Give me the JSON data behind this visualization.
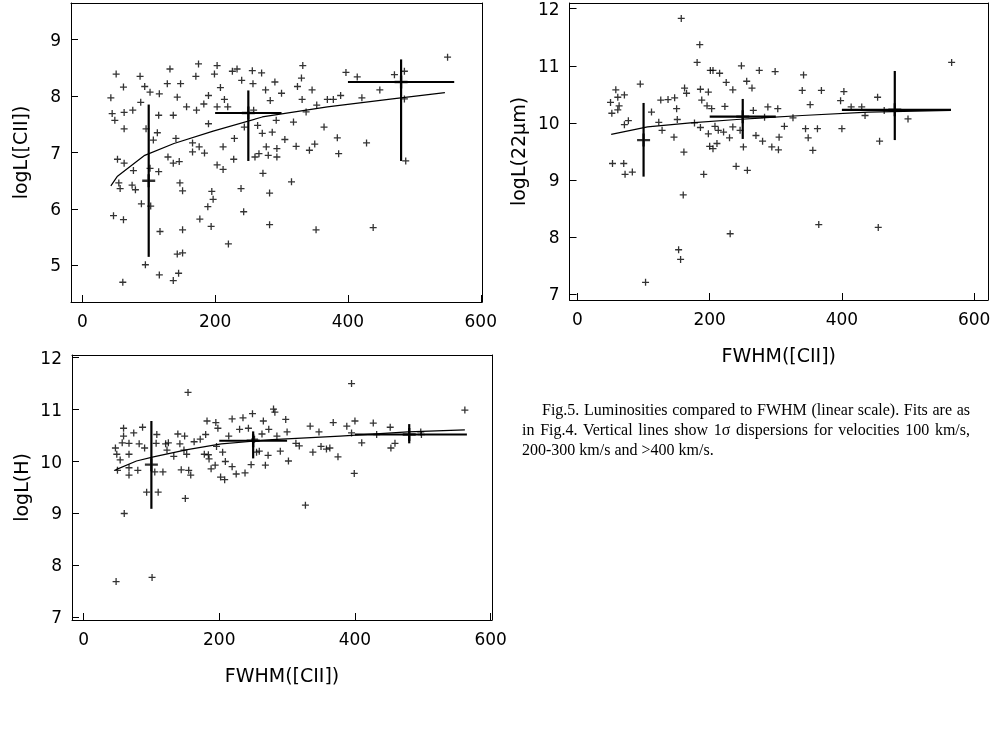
{
  "chart_data": [
    {
      "type": "scatter",
      "ylabel": "logL([CII])",
      "xlim": [
        -17,
        602
      ],
      "xticks": [
        0,
        200,
        400,
        600
      ],
      "ylim": [
        4.35,
        9.65
      ],
      "yticks": [
        5,
        6,
        7,
        8,
        9
      ],
      "series": [
        {
          "marker": "cross",
          "color": "#000000",
          "x": [
            43,
            45,
            51,
            49,
            53,
            47,
            55,
            57,
            62,
            63,
            63,
            62,
            61,
            63,
            76,
            77,
            75,
            80,
            87,
            88,
            89,
            94,
            95,
            103,
            102,
            102,
            107,
            113,
            115,
            116,
            115,
            117,
            116,
            128,
            129,
            132,
            137,
            137,
            141,
            143,
            146,
            147,
            143,
            137,
            145,
            148,
            151,
            151,
            151,
            157,
            166,
            166,
            171,
            175,
            176,
            177,
            172,
            183,
            184,
            189,
            190,
            190,
            194,
            195,
            197,
            199,
            203,
            203,
            203,
            208,
            212,
            212,
            214,
            219,
            220,
            226,
            228,
            229,
            233,
            240,
            239,
            243,
            244,
            256,
            257,
            258,
            260,
            264,
            266,
            270,
            271,
            272,
            276,
            277,
            280,
            282,
            282,
            283,
            286,
            290,
            292,
            293,
            293,
            300,
            305,
            315,
            318,
            322,
            324,
            330,
            332,
            331,
            337,
            342,
            346,
            350,
            352,
            353,
            364,
            369,
            378,
            384,
            386,
            389,
            397,
            414,
            421,
            428,
            438,
            448,
            470,
            485,
            487,
            485,
            550,
            96
          ],
          "values": [
            7.97,
            7.69,
            8.39,
            7.57,
            6.88,
            5.88,
            6.46,
            6.36,
            8.16,
            7.42,
            6.81,
            5.81,
            4.7,
            7.71,
            7.75,
            6.68,
            6.42,
            6.34,
            8.35,
            7.89,
            6.09,
            8.17,
            5.01,
            6.05,
            8.07,
            6.72,
            7.22,
            7.35,
            6.66,
            8.04,
            7.66,
            5.6,
            4.83,
            8.22,
            6.92,
            8.48,
            7.66,
            6.81,
            7.25,
            7.98,
            6.84,
            6.46,
            5.2,
            4.73,
            4.86,
            8.22,
            5.63,
            6.32,
            5.22,
            7.81,
            7.01,
            7.17,
            8.35,
            8.57,
            7.1,
            5.82,
            7.75,
            7.86,
            6.99,
            6.04,
            7.51,
            8.01,
            5.69,
            6.31,
            6.17,
            8.39,
            8.54,
            6.78,
            7.81,
            8.15,
            7.1,
            6.7,
            7.94,
            7.81,
            5.38,
            8.44,
            6.88,
            7.25,
            8.48,
            8.28,
            6.36,
            5.95,
            7.45,
            8.45,
            8.22,
            7.75,
            6.92,
            7.48,
            6.98,
            8.41,
            7.34,
            6.63,
            8.11,
            7.1,
            6.95,
            6.28,
            5.72,
            7.92,
            7.36,
            8.25,
            7.57,
            7.07,
            6.92,
            8.05,
            7.23,
            6.48,
            7.54,
            7.11,
            8.17,
            8.32,
            8.54,
            7.94,
            7.72,
            7.04,
            8.11,
            7.15,
            5.63,
            7.84,
            7.45,
            7.94,
            7.94,
            7.26,
            6.98,
            8.01,
            8.42,
            8.34,
            7.97,
            7.17,
            5.67,
            8.11,
            8.38,
            8.44,
            6.85,
            7.95,
            8.69,
            7.42
          ]
        },
        {
          "type": "line",
          "marker": "none",
          "color": "#000000",
          "x": [
            43,
            53,
            94,
            138,
            197,
            271,
            369,
            467,
            546
          ],
          "values": [
            6.41,
            6.58,
            6.95,
            7.16,
            7.38,
            7.63,
            7.81,
            7.95,
            8.06
          ]
        },
        {
          "marker": "cross",
          "color": "#000000",
          "x": [
            100,
            250,
            480
          ],
          "values": [
            6.5,
            7.7,
            8.25
          ],
          "errors": [
            [
              5.15,
              7.85
            ],
            [
              6.85,
              8.1
            ],
            [
              6.85,
              8.65
            ]
          ],
          "xerrors": [
            null,
            [
              200,
              300
            ],
            [
              400,
              560
            ]
          ]
        }
      ]
    },
    {
      "type": "scatter",
      "ylabel": "logL(22μm)",
      "xlabel": "FWHM([CII])",
      "xlim": [
        -12,
        621
      ],
      "xticks": [
        0,
        200,
        400,
        600
      ],
      "ylim": [
        6.9,
        12.1
      ],
      "yticks": [
        7,
        8,
        9,
        10,
        11,
        12
      ],
      "series": [
        {
          "marker": "cross",
          "color": "#000000",
          "x": [
            50,
            52,
            53,
            58,
            61,
            63,
            61,
            70,
            71,
            72,
            71,
            77,
            83,
            95,
            103,
            112,
            123,
            126,
            128,
            137,
            146,
            147,
            150,
            151,
            153,
            156,
            157,
            160,
            161,
            162,
            165,
            177,
            181,
            185,
            186,
            186,
            188,
            191,
            196,
            198,
            198,
            200,
            201,
            205,
            203,
            205,
            208,
            211,
            213,
            215,
            221,
            223,
            225,
            230,
            231,
            235,
            235,
            240,
            246,
            248,
            251,
            256,
            257,
            264,
            266,
            270,
            275,
            280,
            283,
            288,
            294,
            299,
            303,
            305,
            304,
            313,
            326,
            340,
            342,
            345,
            349,
            352,
            356,
            363,
            365,
            369,
            398,
            400,
            403,
            414,
            430,
            435,
            454,
            457,
            455,
            464,
            500,
            566
          ],
          "values": [
            10.36,
            10.17,
            9.29,
            10.58,
            10.45,
            10.3,
            10.23,
            9.29,
            10.49,
            9.1,
            9.97,
            10.04,
            9.14,
            10.68,
            7.21,
            10.19,
            10.01,
            10.4,
            9.87,
            10.41,
            9.75,
            10.44,
            10.25,
            10.06,
            7.78,
            7.61,
            11.83,
            8.74,
            9.49,
            10.61,
            10.52,
            10.0,
            11.06,
            11.37,
            10.59,
            9.92,
            10.4,
            9.1,
            10.3,
            10.54,
            9.81,
            9.59,
            10.92,
            10.92,
            10.25,
            9.55,
            9.94,
            9.64,
            9.87,
            10.87,
            9.84,
            10.29,
            10.71,
            9.74,
            8.06,
            10.58,
            9.93,
            9.24,
            9.87,
            11.0,
            9.58,
            10.73,
            9.17,
            10.61,
            10.22,
            9.78,
            10.92,
            9.68,
            10.1,
            10.28,
            9.58,
            10.9,
            10.25,
            9.75,
            9.53,
            9.94,
            10.09,
            10.57,
            10.84,
            9.9,
            9.74,
            10.32,
            9.52,
            9.9,
            8.22,
            10.57,
            10.39,
            9.9,
            10.55,
            10.28,
            10.28,
            10.13,
            10.45,
            9.68,
            8.17,
            10.22,
            10.07,
            11.06
          ]
        },
        {
          "type": "line",
          "marker": "none",
          "color": "#000000",
          "x": [
            51,
            106,
            171,
            241,
            340,
            440,
            565
          ],
          "values": [
            9.8,
            9.93,
            10.0,
            10.06,
            10.13,
            10.19,
            10.22
          ]
        },
        {
          "marker": "cross",
          "color": "#000000",
          "x": [
            100,
            250,
            480
          ],
          "values": [
            9.7,
            10.11,
            10.23
          ],
          "errors": [
            [
              9.06,
              10.35
            ],
            [
              9.72,
              10.42
            ],
            [
              9.7,
              10.91
            ]
          ],
          "xerrors": [
            null,
            [
              200,
              300
            ],
            [
              400,
              565
            ]
          ]
        }
      ]
    },
    {
      "type": "scatter",
      "ylabel": "logL(H)",
      "xlabel": "FWHM([CII])",
      "xlim": [
        -17,
        602
      ],
      "xticks": [
        0,
        200,
        400,
        600
      ],
      "ylim": [
        6.95,
        12.05
      ],
      "yticks": [
        7,
        8,
        9,
        10,
        11,
        12
      ],
      "annotations": [
        "Fig.5. Luminosities compared to FWHM (linear scale). Fits are as in Fig.4. Vertical lines show 1σ dispersions for velocities 100 km/s, 200-300 km/s and >400 km/s."
      ],
      "series": [
        {
          "marker": "cross",
          "color": "#000000",
          "x": [
            47,
            50,
            49,
            54,
            57,
            59,
            59,
            60,
            48,
            67,
            67,
            67,
            67,
            74,
            80,
            82,
            87,
            90,
            93,
            101,
            110,
            107,
            108,
            105,
            117,
            121,
            123,
            125,
            133,
            139,
            142,
            144,
            148,
            149,
            150,
            152,
            154,
            155,
            158,
            163,
            172,
            178,
            180,
            182,
            184,
            185,
            188,
            194,
            195,
            196,
            198,
            202,
            208,
            205,
            209,
            214,
            219,
            219,
            225,
            230,
            235,
            238,
            243,
            247,
            249,
            252,
            255,
            259,
            263,
            265,
            268,
            272,
            273,
            280,
            282,
            285,
            290,
            298,
            300,
            302,
            313,
            318,
            327,
            334,
            338,
            347,
            350,
            358,
            363,
            368,
            375,
            388,
            395,
            399,
            395,
            400,
            410,
            427,
            432,
            452,
            453,
            459,
            497,
            498,
            562
          ],
          "values": [
            10.26,
            9.83,
            10.14,
            10.03,
            10.36,
            10.64,
            10.49,
            9.0,
            7.69,
            10.35,
            10.14,
            9.88,
            9.74,
            10.55,
            9.83,
            10.34,
            10.66,
            10.26,
            9.41,
            7.77,
            9.41,
            10.35,
            10.52,
            9.8,
            9.8,
            10.34,
            10.22,
            10.36,
            10.1,
            10.53,
            10.34,
            9.84,
            10.22,
            10.49,
            9.29,
            10.14,
            11.33,
            9.83,
            9.74,
            10.38,
            10.43,
            10.14,
            10.52,
            10.78,
            10.13,
            10.05,
            9.86,
            9.93,
            10.75,
            10.29,
            10.64,
            9.7,
            9.65,
            10.18,
            10.0,
            10.49,
            10.82,
            9.9,
            9.76,
            10.62,
            10.84,
            9.78,
            10.64,
            9.94,
            10.92,
            10.43,
            10.18,
            10.2,
            10.53,
            10.78,
            9.93,
            10.12,
            10.62,
            11.01,
            10.95,
            10.49,
            10.2,
            10.81,
            10.57,
            10.01,
            10.35,
            10.3,
            9.16,
            10.68,
            10.18,
            10.57,
            10.29,
            10.24,
            10.26,
            10.75,
            10.09,
            10.68,
            11.5,
            9.77,
            10.55,
            10.78,
            10.36,
            10.74,
            10.52,
            10.66,
            10.26,
            10.35,
            10.57,
            10.52,
            10.99
          ]
        },
        {
          "type": "line",
          "marker": "none",
          "color": "#000000",
          "x": [
            47,
            78,
            103,
            153,
            203,
            278,
            378,
            478,
            562
          ],
          "values": [
            9.84,
            10.01,
            10.09,
            10.23,
            10.34,
            10.42,
            10.49,
            10.57,
            10.61
          ]
        },
        {
          "marker": "cross",
          "color": "#000000",
          "x": [
            100,
            250,
            480
          ],
          "values": [
            9.94,
            10.4,
            10.52
          ],
          "errors": [
            [
              9.09,
              10.78
            ],
            [
              10.06,
              10.58
            ],
            [
              10.35,
              10.72
            ]
          ],
          "xerrors": [
            null,
            [
              200,
              300
            ],
            [
              400,
              565
            ]
          ]
        }
      ]
    }
  ]
}
